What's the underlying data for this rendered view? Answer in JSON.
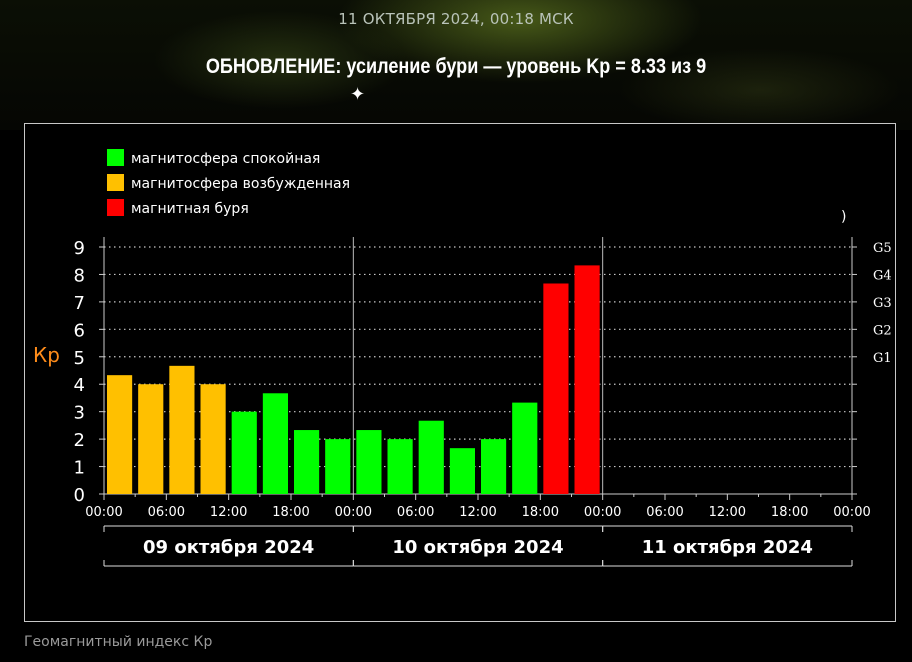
{
  "header": {
    "date_line": "11 ОКТЯБРЯ 2024, 00:18 МСК",
    "headline": "ОБНОВЛЕНИЕ: усиление бури — уровень Kp = 8.33 из 9"
  },
  "caption": "Геомагнитный индекс Кр",
  "chart_data": {
    "type": "bar",
    "ylabel": "Кр",
    "ylim": [
      0,
      9
    ],
    "y_ticks": [
      "0",
      "1",
      "2",
      "3",
      "4",
      "5",
      "6",
      "7",
      "8",
      "9"
    ],
    "g_ticks": [
      {
        "label": "G1",
        "value": 5
      },
      {
        "label": "G2",
        "value": 6
      },
      {
        "label": "G3",
        "value": 7
      },
      {
        "label": "G4",
        "value": 8
      },
      {
        "label": "G5",
        "value": 9
      }
    ],
    "x_ticks": [
      "00:00",
      "06:00",
      "12:00",
      "18:00",
      "00:00",
      "06:00",
      "12:00",
      "18:00",
      "00:00",
      "06:00",
      "12:00",
      "18:00",
      "00:00"
    ],
    "days": [
      "09 октября 2024",
      "10 октября 2024",
      "11 октября 2024"
    ],
    "stray_mark": ")",
    "legend": [
      {
        "label": "магнитосфера спокойная",
        "color": "#00ff00"
      },
      {
        "label": "магнитосфера возбужденная",
        "color": "#ffc000"
      },
      {
        "label": "магнитная буря",
        "color": "#ff0000"
      }
    ],
    "colors": {
      "quiet": "#00ff00",
      "active": "#ffc000",
      "storm": "#ff0000"
    },
    "series": [
      {
        "values": [
          4.33,
          4.0,
          4.67,
          4.0,
          3.0,
          3.67,
          2.33,
          2.0,
          2.33,
          2.0,
          2.67,
          1.67,
          2.0,
          3.33,
          7.67,
          8.33
        ],
        "levels": [
          "active",
          "active",
          "active",
          "active",
          "quiet",
          "quiet",
          "quiet",
          "quiet",
          "quiet",
          "quiet",
          "quiet",
          "quiet",
          "quiet",
          "quiet",
          "storm",
          "storm"
        ]
      }
    ]
  }
}
